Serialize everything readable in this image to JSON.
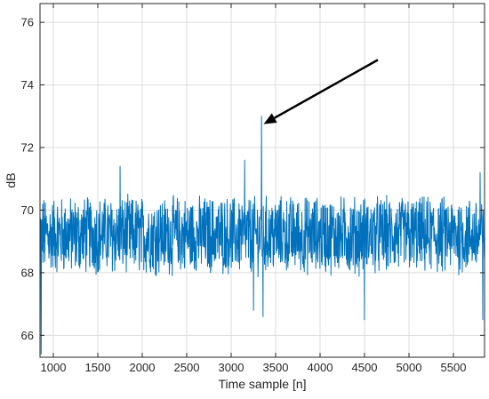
{
  "chart_data": {
    "type": "line",
    "title": "",
    "xlabel": "Time sample [n]",
    "ylabel": "dB",
    "xlim": [
      850,
      5850
    ],
    "ylim": [
      65.3,
      76.6
    ],
    "xticks": [
      1000,
      1500,
      2000,
      2500,
      3000,
      3500,
      4000,
      4500,
      5000,
      5500
    ],
    "yticks": [
      66,
      68,
      70,
      72,
      74,
      76
    ],
    "grid": true,
    "line_color": "#0072BD",
    "series_count_points": 1500,
    "series_baseline_mean": 69.2,
    "series_noise_halfrange": 1.1,
    "notable_points": [
      {
        "x": 862,
        "y": 65.4
      },
      {
        "x": 1750,
        "y": 71.4
      },
      {
        "x": 3150,
        "y": 71.6
      },
      {
        "x": 3250,
        "y": 66.8
      },
      {
        "x": 3340,
        "y": 73.0
      },
      {
        "x": 3360,
        "y": 66.6
      },
      {
        "x": 4500,
        "y": 66.5
      },
      {
        "x": 5800,
        "y": 71.2
      },
      {
        "x": 5830,
        "y": 66.5
      }
    ],
    "annotation": {
      "type": "arrow",
      "from": [
        4650,
        74.8
      ],
      "to": [
        3365,
        72.75
      ]
    }
  }
}
